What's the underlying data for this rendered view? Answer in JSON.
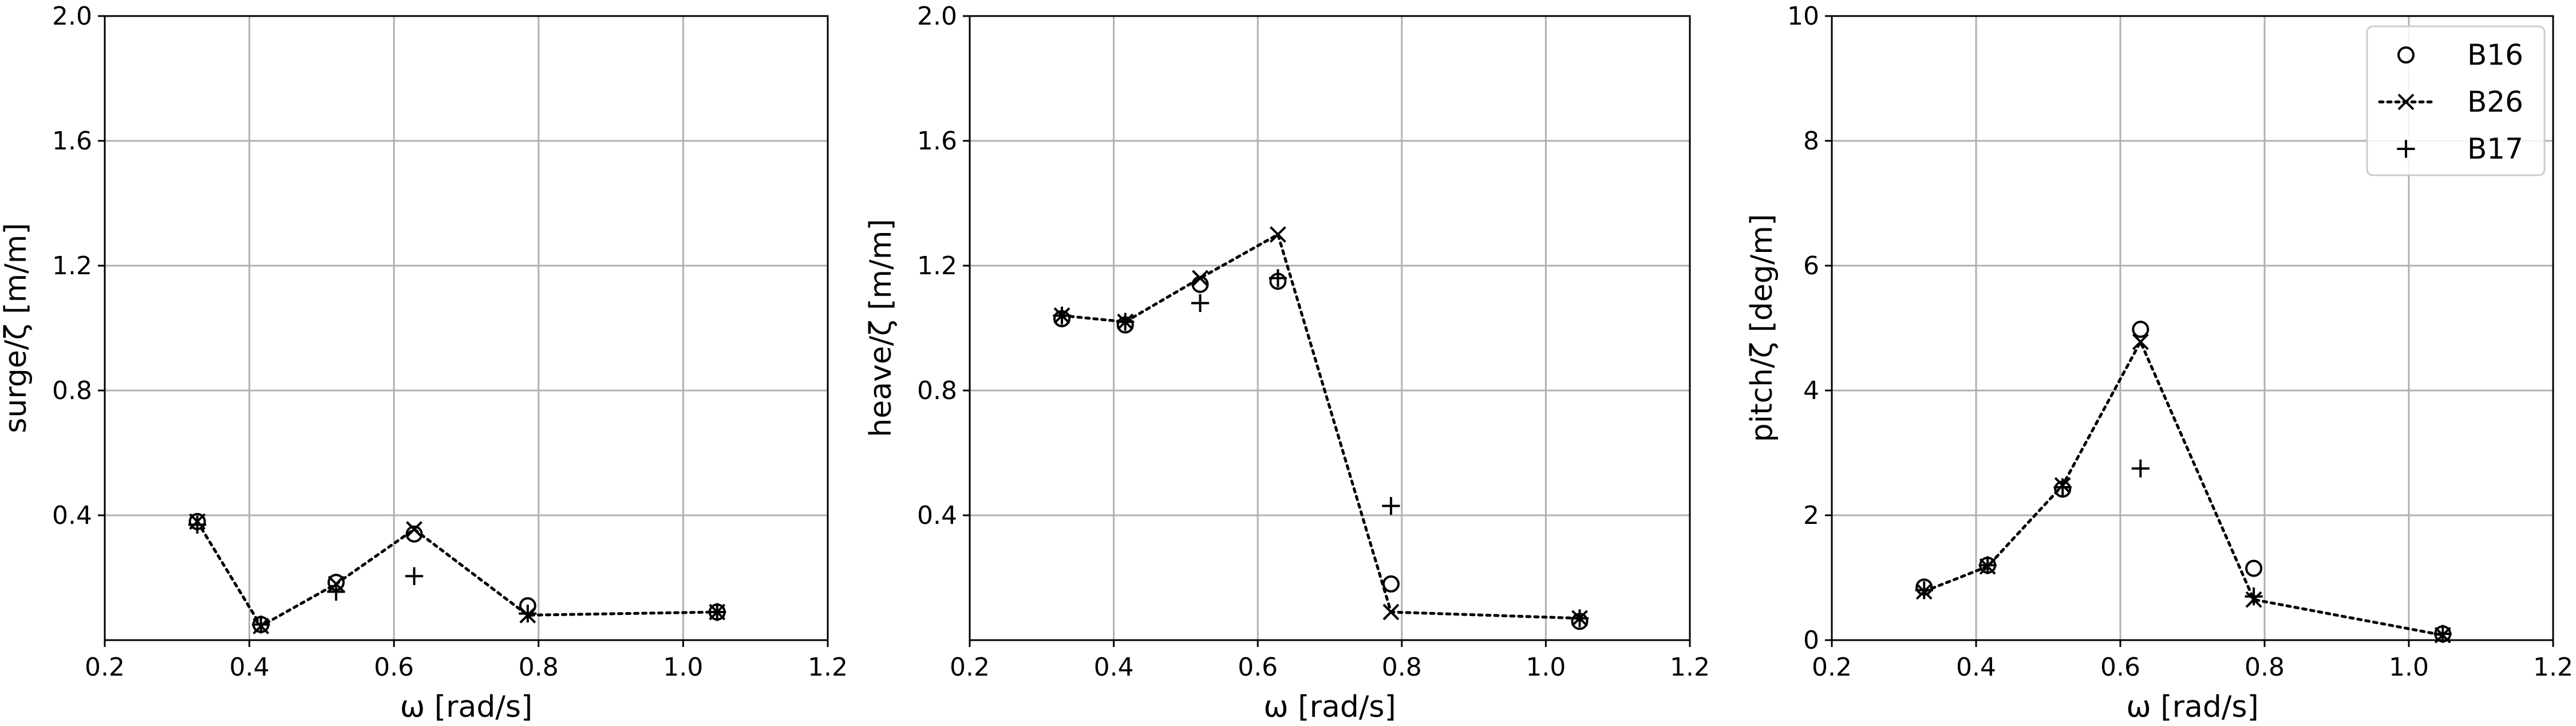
{
  "chart_data": [
    {
      "type": "scatter",
      "xlabel": "ω [rad/s]",
      "ylabel": "surge/ζ [m/m]",
      "xlim": [
        0.2,
        1.2
      ],
      "ylim": [
        0,
        2.0
      ],
      "xticks": [
        0.2,
        0.4,
        0.6,
        0.8,
        1.0,
        1.2
      ],
      "yticks": [
        0.4,
        0.8,
        1.2,
        1.6,
        2.0
      ],
      "xtick_labels": [
        "0.2",
        "0.4",
        "0.6",
        "0.8",
        "1.0",
        "1.2"
      ],
      "ytick_labels": [
        "0.4",
        "0.8",
        "1.2",
        "1.6",
        "2.0"
      ],
      "grid": true,
      "series": [
        {
          "name": "B16",
          "marker": "circle",
          "x": [
            0.328,
            0.416,
            0.52,
            0.628,
            0.785,
            1.047
          ],
          "y": [
            0.38,
            0.05,
            0.185,
            0.34,
            0.11,
            0.09
          ]
        },
        {
          "name": "B26",
          "marker": "x",
          "line": "dotted",
          "x": [
            0.328,
            0.416,
            0.52,
            0.628,
            0.785,
            1.047
          ],
          "y": [
            0.38,
            0.045,
            0.18,
            0.355,
            0.08,
            0.09
          ]
        },
        {
          "name": "B17",
          "marker": "plus",
          "x": [
            0.328,
            0.416,
            0.52,
            0.628,
            0.785,
            1.047
          ],
          "y": [
            0.37,
            0.05,
            0.155,
            0.205,
            0.085,
            0.09
          ]
        }
      ]
    },
    {
      "type": "scatter",
      "xlabel": "ω [rad/s]",
      "ylabel": "heave/ζ [m/m]",
      "xlim": [
        0.2,
        1.2
      ],
      "ylim": [
        0,
        2.0
      ],
      "xticks": [
        0.2,
        0.4,
        0.6,
        0.8,
        1.0,
        1.2
      ],
      "yticks": [
        0.4,
        0.8,
        1.2,
        1.6,
        2.0
      ],
      "xtick_labels": [
        "0.2",
        "0.4",
        "0.6",
        "0.8",
        "1.0",
        "1.2"
      ],
      "ytick_labels": [
        "0.4",
        "0.8",
        "1.2",
        "1.6",
        "2.0"
      ],
      "grid": true,
      "series": [
        {
          "name": "B16",
          "marker": "circle",
          "x": [
            0.328,
            0.416,
            0.52,
            0.628,
            0.785,
            1.047
          ],
          "y": [
            1.03,
            1.01,
            1.14,
            1.15,
            0.18,
            0.06
          ]
        },
        {
          "name": "B26",
          "marker": "x",
          "line": "dotted",
          "x": [
            0.328,
            0.416,
            0.52,
            0.628,
            0.785,
            1.047
          ],
          "y": [
            1.04,
            1.02,
            1.16,
            1.3,
            0.09,
            0.07
          ]
        },
        {
          "name": "B17",
          "marker": "plus",
          "x": [
            0.328,
            0.416,
            0.52,
            0.628,
            0.785,
            1.047
          ],
          "y": [
            1.04,
            1.02,
            1.08,
            1.16,
            0.43,
            0.07
          ]
        }
      ]
    },
    {
      "type": "scatter",
      "xlabel": "ω [rad/s]",
      "ylabel": "pitch/ζ [deg/m]",
      "xlim": [
        0.2,
        1.2
      ],
      "ylim": [
        0,
        10
      ],
      "xticks": [
        0.2,
        0.4,
        0.6,
        0.8,
        1.0,
        1.2
      ],
      "yticks": [
        0,
        2,
        4,
        6,
        8,
        10
      ],
      "xtick_labels": [
        "0.2",
        "0.4",
        "0.6",
        "0.8",
        "1.0",
        "1.2"
      ],
      "ytick_labels": [
        "0",
        "2",
        "4",
        "6",
        "8",
        "10"
      ],
      "grid": true,
      "legend": {
        "position": "top-right",
        "entries": [
          "B16",
          "B26",
          "B17"
        ]
      },
      "series": [
        {
          "name": "B16",
          "marker": "circle",
          "x": [
            0.328,
            0.416,
            0.52,
            0.628,
            0.785,
            1.047
          ],
          "y": [
            0.85,
            1.2,
            2.42,
            4.98,
            1.15,
            0.1
          ]
        },
        {
          "name": "B26",
          "marker": "x",
          "line": "dotted",
          "x": [
            0.328,
            0.416,
            0.52,
            0.628,
            0.785,
            1.047
          ],
          "y": [
            0.78,
            1.18,
            2.48,
            4.78,
            0.65,
            0.08
          ]
        },
        {
          "name": "B17",
          "marker": "plus",
          "x": [
            0.328,
            0.416,
            0.52,
            0.628,
            0.785,
            1.047
          ],
          "y": [
            0.8,
            1.2,
            2.45,
            2.75,
            0.7,
            0.1
          ]
        }
      ]
    }
  ]
}
